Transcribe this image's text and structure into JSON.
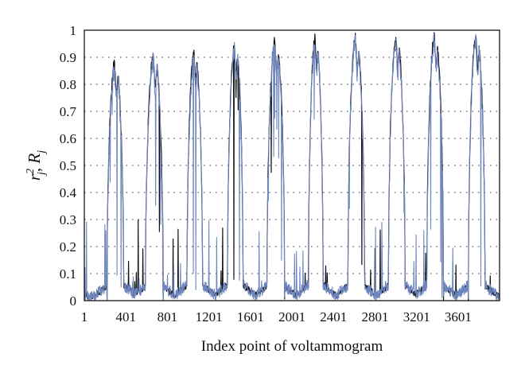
{
  "chart_data": {
    "type": "line",
    "xlabel": "Index point of voltammogram",
    "ylabel": {
      "base1": "r",
      "sup1": "2",
      "sub1": "j",
      "sep": ", ",
      "base2": "R",
      "sub2": "j"
    },
    "xlim": [
      1,
      4000
    ],
    "ylim": [
      0,
      1
    ],
    "x_ticks": [
      1,
      401,
      801,
      1201,
      1601,
      2001,
      2401,
      2801,
      3201,
      3601
    ],
    "y_ticks": [
      0,
      0.1,
      0.2,
      0.3,
      0.4,
      0.5,
      0.6,
      0.7,
      0.8,
      0.9,
      1
    ],
    "grid": "horizontal dotted",
    "cycles": [
      {
        "start": 220,
        "end": 380,
        "black_peak": 0.89,
        "blue_peak": 0.86
      },
      {
        "start": 590,
        "end": 760,
        "black_peak": 0.92,
        "blue_peak": 0.9
      },
      {
        "start": 990,
        "end": 1140,
        "black_peak": 0.93,
        "blue_peak": 0.91
      },
      {
        "start": 1380,
        "end": 1530,
        "black_peak": 0.96,
        "blue_peak": 0.95
      },
      {
        "start": 1760,
        "end": 1930,
        "black_peak": 0.98,
        "blue_peak": 0.96
      },
      {
        "start": 2160,
        "end": 2300,
        "black_peak": 0.99,
        "blue_peak": 0.97
      },
      {
        "start": 2540,
        "end": 2700,
        "black_peak": 0.99,
        "blue_peak": 0.97
      },
      {
        "start": 2930,
        "end": 3090,
        "black_peak": 0.99,
        "blue_peak": 0.97
      },
      {
        "start": 3300,
        "end": 3460,
        "black_peak": 0.99,
        "blue_peak": 0.97
      },
      {
        "start": 3700,
        "end": 3860,
        "black_peak": 0.99,
        "blue_peak": 0.98
      }
    ],
    "series": [
      {
        "color": "#111111"
      },
      {
        "color": "#6f87c0"
      }
    ]
  }
}
